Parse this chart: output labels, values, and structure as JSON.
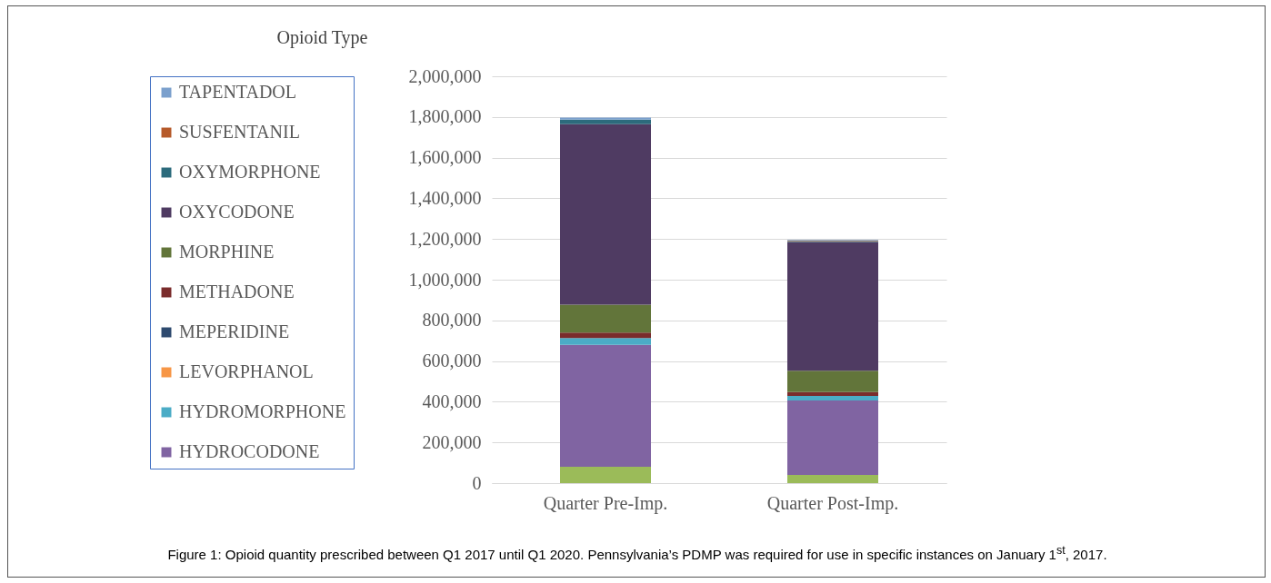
{
  "chart_data": {
    "type": "bar",
    "title": "Opioid Type",
    "stacked": true,
    "categories": [
      "Quarter Pre-Imp.",
      "Quarter Post-Imp."
    ],
    "series": [
      {
        "color": "#9bbb59",
        "values": [
          80000,
          40000
        ]
      },
      {
        "name": "HYDROCODONE",
        "color": "#8064a2",
        "values": [
          600000,
          366000
        ]
      },
      {
        "name": "HYDROMORPHONE",
        "color": "#4bacc6",
        "values": [
          33000,
          23000
        ]
      },
      {
        "name": "LEVORPHANOL",
        "color": "#f79646",
        "values": [
          null,
          null
        ]
      },
      {
        "name": "MEPERIDINE",
        "color": "#2e4a6f",
        "values": [
          null,
          null
        ]
      },
      {
        "name": "METHADONE",
        "color": "#7a2c2c",
        "values": [
          27000,
          19000
        ]
      },
      {
        "name": "MORPHINE",
        "color": "#62753a",
        "values": [
          137000,
          104000
        ]
      },
      {
        "name": "OXYCODONE",
        "color": "#4f3b62",
        "values": [
          888000,
          633000
        ]
      },
      {
        "name": "OXYMORPHONE",
        "color": "#2c6b7c",
        "values": [
          22000,
          5000
        ]
      },
      {
        "name": "SUSFENTANIL",
        "color": "#b65a2a",
        "values": [
          null,
          3000
        ]
      },
      {
        "name": "TAPENTADOL",
        "color": "#7ba0cd",
        "values": [
          10000,
          3000
        ]
      }
    ],
    "ylim": [
      0,
      2000000
    ],
    "yticks": [
      0,
      {
        "value": 200000,
        "label": "200,000"
      },
      {
        "value": 400000,
        "label": "400,000"
      },
      {
        "value": 600000,
        "label": "600,000"
      },
      {
        "value": 800000,
        "label": "800,000"
      },
      {
        "value": 1000000,
        "label": "1,000,000"
      },
      {
        "value": 1200000,
        "label": "1,200,000"
      },
      {
        "value": 1400000,
        "label": "1,400,000"
      },
      {
        "value": 1600000,
        "label": "1,600,000"
      },
      {
        "value": 1800000,
        "label": "1,800,000"
      },
      {
        "value": 2000000,
        "label": "2,000,000"
      }
    ],
    "grid": "y",
    "legend": "left",
    "annotations": [
      "Figure 1: Opioid quantity prescribed between Q1 2017 until Q1 2020. Pennsylvania’s PDMP was required for use in specific instances on January 1$^{st}$, 2017."
    ]
  }
}
